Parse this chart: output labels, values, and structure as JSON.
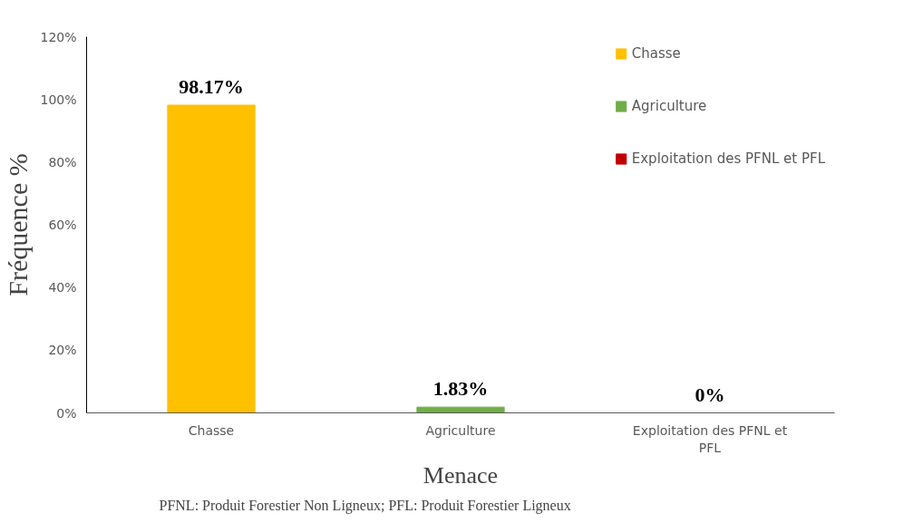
{
  "chart_data": {
    "type": "bar",
    "xlabel": "Menace",
    "ylabel": "Fréquence %",
    "categories": [
      "Chasse",
      "Agriculture",
      "Exploitation des PFNL et PFL"
    ],
    "series": [
      {
        "name": "Chasse",
        "color": "#ffc000",
        "values": [
          98.17,
          null,
          null
        ],
        "value_labels": [
          "98.17%",
          null,
          null
        ]
      },
      {
        "name": "Agriculture",
        "color": "#70ad47",
        "values": [
          null,
          1.83,
          null
        ],
        "value_labels": [
          null,
          "1.83%",
          null
        ]
      },
      {
        "name": "Exploitation des PFNL et PFL",
        "color": "#c00000",
        "values": [
          null,
          null,
          0
        ],
        "value_labels": [
          null,
          null,
          "0%"
        ]
      }
    ],
    "ylim": [
      0,
      120
    ],
    "yticks": [
      {
        "value": 0,
        "label": "0%"
      },
      {
        "value": 20,
        "label": "20%"
      },
      {
        "value": 40,
        "label": "40%"
      },
      {
        "value": 60,
        "label": "60%"
      },
      {
        "value": 80,
        "label": "80%"
      },
      {
        "value": 100,
        "label": "100%"
      },
      {
        "value": 120,
        "label": "120%"
      }
    ],
    "grid": false,
    "legend": "top right",
    "annotations": [
      "PFNL: Produit Forestier Non Ligneux; PFL: Produit Forestier Ligneux"
    ]
  }
}
